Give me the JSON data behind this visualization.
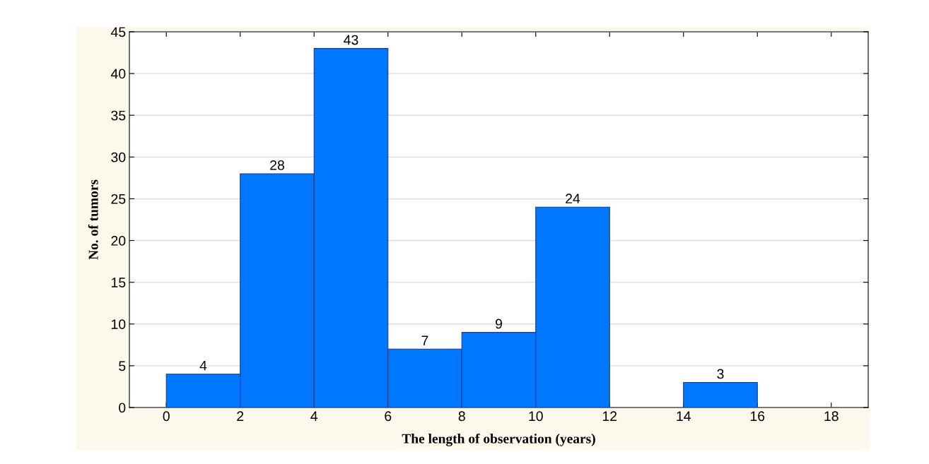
{
  "chart_data": {
    "type": "histogram",
    "xlabel": "The length of observation (years)",
    "ylabel": "No. of tumors",
    "bins": [
      0,
      2,
      4,
      6,
      8,
      10,
      12,
      14,
      16
    ],
    "values": [
      4,
      28,
      43,
      7,
      9,
      24,
      0,
      3
    ],
    "value_labels": [
      "4",
      "28",
      "43",
      "7",
      "9",
      "24",
      null,
      "3"
    ],
    "color": "#0077ff",
    "xlim": [
      -1,
      19
    ],
    "xticks": [
      0,
      2,
      4,
      6,
      8,
      10,
      12,
      14,
      16,
      18
    ],
    "ylim": [
      0,
      45
    ],
    "yticks": [
      0,
      5,
      10,
      15,
      20,
      25,
      30,
      35,
      40,
      45
    ],
    "grid": "y"
  }
}
